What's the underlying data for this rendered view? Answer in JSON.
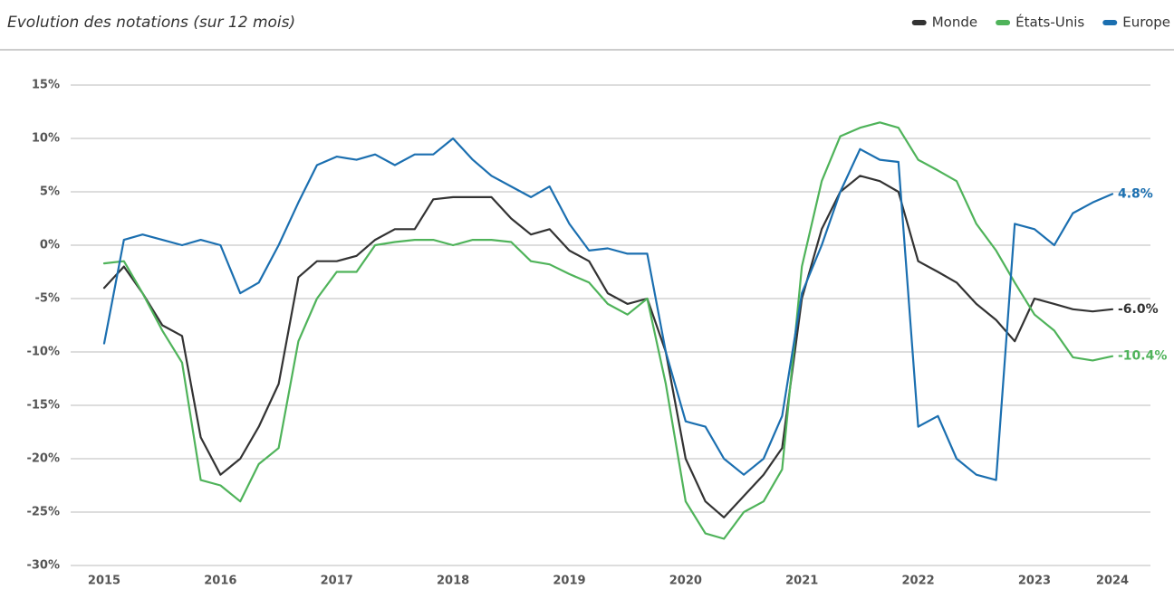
{
  "chart_data": {
    "type": "line",
    "subtitle": "Evolution des notations (sur 12 mois)",
    "legend": "top-right",
    "grid": true,
    "x": [
      2015.0,
      2015.17,
      2015.33,
      2015.5,
      2015.67,
      2015.83,
      2016.0,
      2016.17,
      2016.33,
      2016.5,
      2016.67,
      2016.83,
      2017.0,
      2017.17,
      2017.33,
      2017.5,
      2017.67,
      2017.83,
      2018.0,
      2018.17,
      2018.33,
      2018.5,
      2018.67,
      2018.83,
      2019.0,
      2019.17,
      2019.33,
      2019.5,
      2019.67,
      2019.83,
      2020.0,
      2020.17,
      2020.33,
      2020.5,
      2020.67,
      2020.83,
      2021.0,
      2021.17,
      2021.33,
      2021.5,
      2021.67,
      2021.83,
      2022.0,
      2022.17,
      2022.33,
      2022.5,
      2022.67,
      2022.83,
      2023.0,
      2023.17,
      2023.33,
      2023.5,
      2023.67
    ],
    "xlim": [
      2015,
      2023.67
    ],
    "xticks": [
      2015,
      2016,
      2017,
      2018,
      2019,
      2020,
      2021,
      2022,
      2023,
      {
        "value": 2023.67,
        "label": "2024"
      }
    ],
    "ylim": [
      -30,
      15
    ],
    "yticks": [
      {
        "value": 15,
        "label": "15%"
      },
      {
        "value": 10,
        "label": "10%"
      },
      {
        "value": 5,
        "label": "5%"
      },
      {
        "value": 0,
        "label": "0%"
      },
      {
        "value": -5,
        "label": "-5%"
      },
      {
        "value": -10,
        "label": "-10%"
      },
      {
        "value": -15,
        "label": "-15%"
      },
      {
        "value": -20,
        "label": "-20%"
      },
      {
        "value": -25,
        "label": "-25%"
      },
      {
        "value": -30,
        "label": "-30%"
      }
    ],
    "series": [
      {
        "name": "Monde",
        "color": "#333333",
        "values": [
          -4,
          -2,
          -4.5,
          -7.5,
          -8.5,
          -18,
          -21.5,
          -20,
          -17,
          -13,
          -3,
          -1.5,
          -1.5,
          -1,
          0.5,
          1.5,
          1.5,
          4.3,
          4.5,
          4.5,
          4.5,
          2.5,
          1,
          1.5,
          -0.5,
          -1.5,
          -4.5,
          -5.5,
          -5,
          -10,
          -20,
          -24,
          -25.5,
          -23.5,
          -21.5,
          -19,
          -5,
          1.5,
          5,
          6.5,
          6,
          5,
          -1.5,
          -2.5,
          -3.5,
          -5.5,
          -7,
          -9,
          -5,
          -5.5,
          -6,
          -6.2,
          -6.0
        ],
        "value_labels": [
          null,
          null,
          null,
          null,
          null,
          null,
          null,
          null,
          null,
          null,
          null,
          null,
          null,
          null,
          null,
          null,
          null,
          null,
          null,
          null,
          null,
          null,
          null,
          null,
          null,
          null,
          null,
          null,
          null,
          null,
          null,
          null,
          null,
          null,
          null,
          null,
          null,
          null,
          null,
          null,
          null,
          null,
          null,
          null,
          null,
          null,
          null,
          null,
          null,
          null,
          null,
          null,
          "-6.0%"
        ]
      },
      {
        "name": "États-Unis",
        "color": "#4fb35a",
        "values": [
          -1.7,
          -1.5,
          -4.5,
          -8,
          -11,
          -22,
          -22.5,
          -24,
          -20.5,
          -19,
          -9,
          -5,
          -2.5,
          -2.5,
          0,
          0.3,
          0.5,
          0.5,
          0,
          0.5,
          0.5,
          0.3,
          -1.5,
          -1.8,
          -2.7,
          -3.5,
          -5.5,
          -6.5,
          -5,
          -13,
          -24,
          -27,
          -27.5,
          -25,
          -24,
          -21,
          -2,
          6,
          10.2,
          11,
          11.5,
          11,
          8,
          7,
          6,
          2,
          -0.5,
          -3.5,
          -6.5,
          -8,
          -10.5,
          -10.8,
          -10.4
        ],
        "value_labels": [
          null,
          null,
          null,
          null,
          null,
          null,
          null,
          null,
          null,
          null,
          null,
          null,
          null,
          null,
          null,
          null,
          null,
          null,
          null,
          null,
          null,
          null,
          null,
          null,
          null,
          null,
          null,
          null,
          null,
          null,
          null,
          null,
          null,
          null,
          null,
          null,
          null,
          null,
          null,
          null,
          null,
          null,
          null,
          null,
          null,
          null,
          null,
          null,
          null,
          null,
          null,
          null,
          "-10.4%"
        ]
      },
      {
        "name": "Europe",
        "color": "#1b6fb0",
        "values": [
          -9.2,
          0.5,
          1,
          0.5,
          0,
          0.5,
          0,
          -4.5,
          -3.5,
          0,
          4,
          7.5,
          8.3,
          8,
          8.5,
          7.5,
          8.5,
          8.5,
          10,
          8,
          6.5,
          5.5,
          4.5,
          5.5,
          2,
          -0.5,
          -0.3,
          -0.8,
          -0.8,
          -10,
          -16.5,
          -17,
          -20,
          -21.5,
          -20,
          -16,
          -4.5,
          0,
          5,
          9,
          8,
          7.8,
          -17,
          -16,
          -20,
          -21.5,
          -22,
          2,
          1.5,
          0,
          3,
          4,
          4.8
        ],
        "value_labels": [
          null,
          null,
          null,
          null,
          null,
          null,
          null,
          null,
          null,
          null,
          null,
          null,
          null,
          null,
          null,
          null,
          null,
          null,
          null,
          null,
          null,
          null,
          null,
          null,
          null,
          null,
          null,
          null,
          null,
          null,
          null,
          null,
          null,
          null,
          null,
          null,
          null,
          null,
          null,
          null,
          null,
          null,
          null,
          null,
          null,
          null,
          null,
          null,
          null,
          null,
          null,
          null,
          "4.8%"
        ]
      }
    ]
  }
}
